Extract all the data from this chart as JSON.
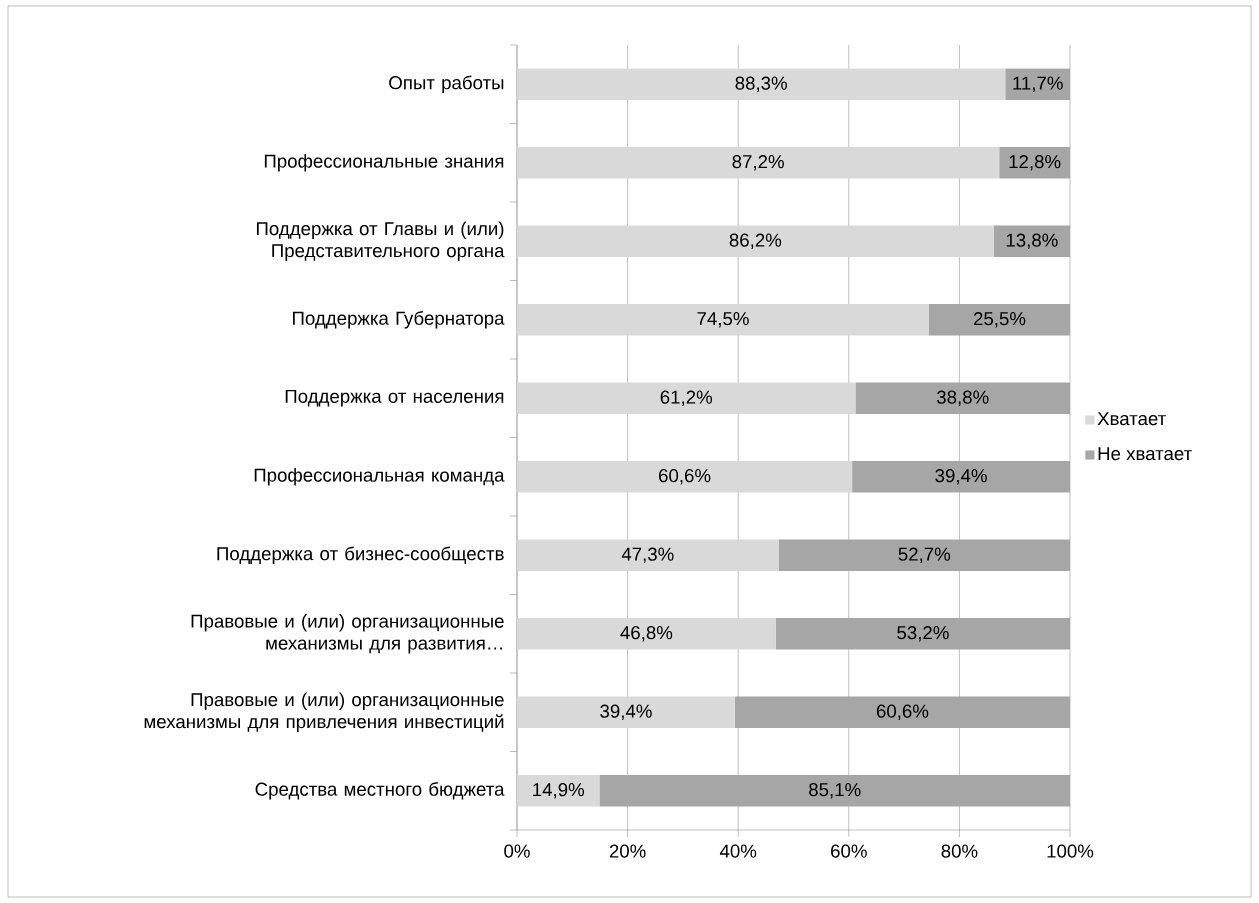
{
  "chart_data": {
    "type": "bar",
    "orientation": "horizontal",
    "stacked": true,
    "categories": [
      "Опыт работы",
      "Профессиональные знания",
      "Поддержка от Главы и (или) Представительного органа",
      "Поддержка Губернатора",
      "Поддержка от населения",
      "Профессиональная команда",
      "Поддержка от бизнес-сообществ",
      "Правовые и (или) организационные механизмы для развития…",
      "Правовые и (или) организационные механизмы для привлечения инвестиций",
      "Средства местного бюджета"
    ],
    "series": [
      {
        "name": "Хватает",
        "color": "#d9d9d9",
        "values": [
          88.3,
          87.2,
          86.2,
          74.5,
          61.2,
          60.6,
          47.3,
          46.8,
          39.4,
          14.9
        ],
        "value_labels": [
          "88,3%",
          "87,2%",
          "86,2%",
          "74,5%",
          "61,2%",
          "60,6%",
          "47,3%",
          "46,8%",
          "39,4%",
          "14,9%"
        ]
      },
      {
        "name": "Не хватает",
        "color": "#a6a6a6",
        "values": [
          11.7,
          12.8,
          13.8,
          25.5,
          38.8,
          39.4,
          52.7,
          53.2,
          60.6,
          85.1
        ],
        "value_labels": [
          "11,7%",
          "12,8%",
          "13,8%",
          "25,5%",
          "38,8%",
          "39,4%",
          "52,7%",
          "53,2%",
          "60,6%",
          "85,1%"
        ]
      }
    ],
    "xlim": [
      0,
      100
    ],
    "xticks": [
      {
        "value": 0,
        "label": "0%"
      },
      {
        "value": 20,
        "label": "20%"
      },
      {
        "value": 40,
        "label": "40%"
      },
      {
        "value": 60,
        "label": "60%"
      },
      {
        "value": 80,
        "label": "80%"
      },
      {
        "value": 100,
        "label": "100%"
      }
    ],
    "grid": "x",
    "legend": "right"
  }
}
